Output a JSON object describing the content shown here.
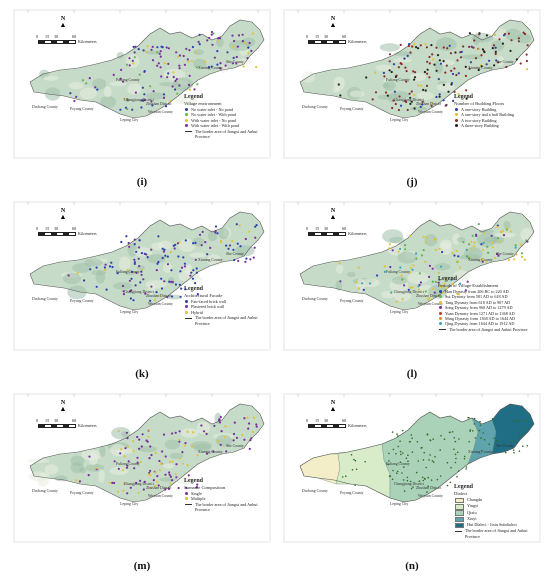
{
  "panels": [
    {
      "id": "i",
      "label": "(i)",
      "legend_title": "Legend",
      "legend_subtitle": "Village environment",
      "items": [
        {
          "text": "No water inlet - No pond",
          "color": "#2b3fae"
        },
        {
          "text": "No water inlet - With pond",
          "color": "#62b44f"
        },
        {
          "text": "With water inlet - No pond",
          "color": "#e0c23a"
        },
        {
          "text": "With water inlet - With pond",
          "color": "#7a2f9e"
        }
      ],
      "border_text": "The border area of Jiangxi and Anhui Province",
      "fills": "terrain",
      "points": "mixed"
    },
    {
      "id": "j",
      "label": "(j)",
      "legend_title": "Legend",
      "legend_subtitle": "Number of Building Floors",
      "items": [
        {
          "text": "A one-story Building",
          "color": "#2b3fae"
        },
        {
          "text": "A one-story and a half Building",
          "color": "#e0c23a"
        },
        {
          "text": "A two-story Building",
          "color": "#8b2a2a"
        },
        {
          "text": "A three-story Building",
          "color": "#222222"
        }
      ],
      "border_text": "",
      "fills": "terrain",
      "points": "dense_red"
    },
    {
      "id": "k",
      "label": "(k)",
      "legend_title": "Legend",
      "legend_subtitle": "Architectural Facade",
      "items": [
        {
          "text": "Fair-faced brick wall",
          "color": "#2b3fae"
        },
        {
          "text": "Plastered brick wall",
          "color": "#7a2f9e"
        },
        {
          "text": "Hybrid",
          "color": "#e0c23a"
        }
      ],
      "border_text": "The border area of Jiangxi and Anhui Province",
      "fills": "terrain",
      "points": "blue_purple"
    },
    {
      "id": "l",
      "label": "(l)",
      "legend_title": "Legend",
      "legend_subtitle": "Periods of Village Establishment",
      "items": [
        {
          "text": "Han Dynasty from 206 BC to 220 AD",
          "color": "#2b3fae"
        },
        {
          "text": "Sui Dynasty from 581 AD to 618 AD",
          "color": "#62b44f"
        },
        {
          "text": "Tang Dynasty from 618 AD to 907 AD",
          "color": "#e0c23a"
        },
        {
          "text": "Song Dynasty from 960 AD to 1279 AD",
          "color": "#7a2f9e"
        },
        {
          "text": "Yuan Dynasty from 1271 AD to 1368 AD",
          "color": "#c0392b"
        },
        {
          "text": "Ming Dynasty from 1368 AD to 1644 AD",
          "color": "#d98a2b"
        },
        {
          "text": "Qing Dynasty from 1644 AD to 1912 AD",
          "color": "#3aa6b5"
        }
      ],
      "border_text": "The border area of Jiangxi and Anhui Province",
      "fills": "terrain",
      "points": "mixed_yellow"
    },
    {
      "id": "m",
      "label": "(m)",
      "legend_title": "Legend",
      "legend_subtitle": "Surname Composition",
      "items": [
        {
          "text": "Single",
          "color": "#7a2f9e"
        },
        {
          "text": "Multiple",
          "color": "#e0c23a"
        }
      ],
      "border_text": "The border area of Jiangxi and Anhui Province",
      "fills": "terrain",
      "points": "purple_yellow"
    },
    {
      "id": "n",
      "label": "(n)",
      "legend_title": "Legend",
      "legend_subtitle": "Dialect",
      "items": [
        {
          "text": "Changdu",
          "color": "#f3eec7",
          "swatch": "square"
        },
        {
          "text": "Yingyi",
          "color": "#d9ecc9",
          "swatch": "square"
        },
        {
          "text": "Qixiu",
          "color": "#a9d2b8",
          "swatch": "square"
        },
        {
          "text": "Xiuyi",
          "color": "#5fa3ad",
          "swatch": "square"
        },
        {
          "text": "Hui Dialect - Jixiu Subdialect",
          "color": "#1f6e86",
          "swatch": "square"
        }
      ],
      "border_text": "The border area of Jiangxi and Anhui Province",
      "fills": "dialect",
      "points": "green_small"
    }
  ],
  "scale": {
    "ticks": [
      "0",
      "15",
      "30",
      "60"
    ],
    "unit": "Kilometers"
  },
  "north": "N",
  "counties": {
    "duchang": "Duchang County",
    "poyang": "Poyang County",
    "fuliang": "Fuliang County",
    "changjiang": "Changjiang District",
    "zhushan": "Zhushan District",
    "leping": "Leping City",
    "wuyuan": "Wuyuan County",
    "xiuning": "Xiuning County",
    "shexian": "She County"
  },
  "colors": {
    "terrain_light": "#e8efe0",
    "terrain_mid": "#c7dcc8",
    "terrain_dark": "#9fc0a9",
    "outline": "#555555"
  }
}
